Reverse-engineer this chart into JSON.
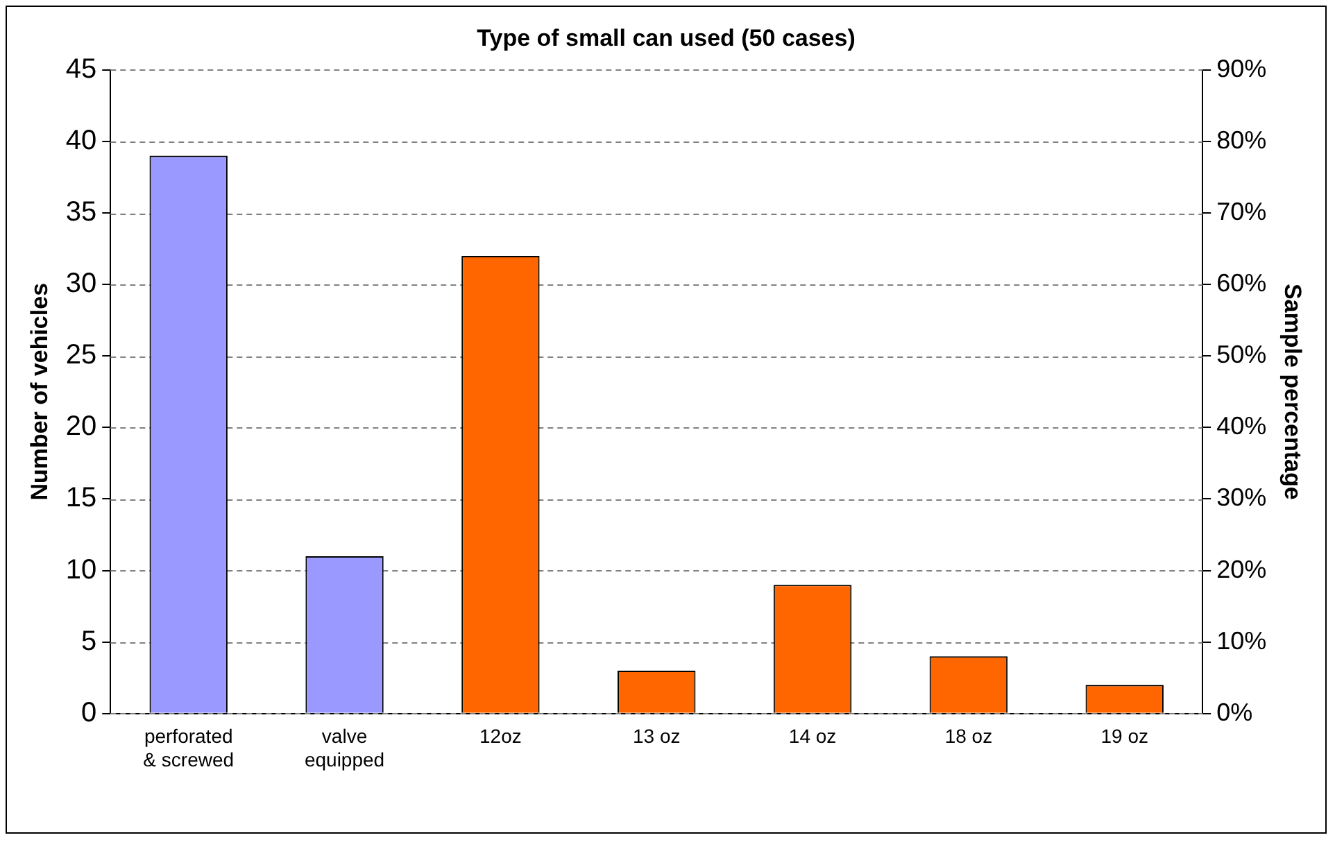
{
  "chart_data": {
    "type": "bar",
    "title": "Type of small can used (50 cases)",
    "categories": [
      "perforated & screwed",
      "valve equipped",
      "12oz",
      "13 oz",
      "14 oz",
      "18 oz",
      "19 oz"
    ],
    "values": [
      39,
      11,
      32,
      3,
      9,
      4,
      2
    ],
    "colors": [
      "#9999ff",
      "#9999ff",
      "#ff6600",
      "#ff6600",
      "#ff6600",
      "#ff6600",
      "#ff6600"
    ],
    "ylabel": "Number of vehicles",
    "y2label": "Sample percentage",
    "ylim": [
      0,
      45
    ],
    "yticks": [
      0,
      5,
      10,
      15,
      20,
      25,
      30,
      35,
      40,
      45
    ],
    "y2lim": [
      0,
      90
    ],
    "y2ticks": [
      {
        "value": 0,
        "label": "0%"
      },
      {
        "value": 10,
        "label": "10%"
      },
      {
        "value": 20,
        "label": "20%"
      },
      {
        "value": 30,
        "label": "30%"
      },
      {
        "value": 40,
        "label": "40%"
      },
      {
        "value": 50,
        "label": "50%"
      },
      {
        "value": 60,
        "label": "60%"
      },
      {
        "value": 70,
        "label": "70%"
      },
      {
        "value": 80,
        "label": "80%"
      },
      {
        "value": 90,
        "label": "90%"
      }
    ],
    "grid": "y",
    "legend": false
  }
}
